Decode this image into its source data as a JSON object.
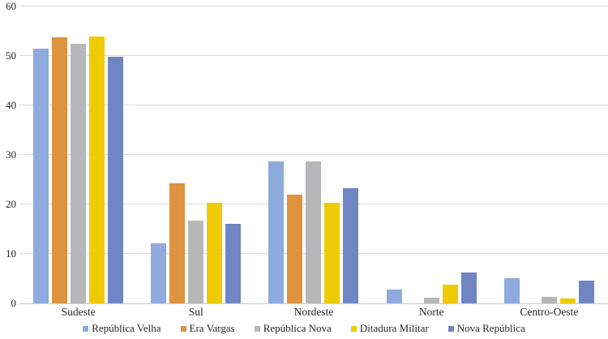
{
  "chart_data": {
    "type": "bar",
    "title": "",
    "xlabel": "",
    "ylabel": "",
    "categories": [
      "Sudeste",
      "Sul",
      "Nordeste",
      "Norte",
      "Centro-Oeste"
    ],
    "series": [
      {
        "name": "República Velha",
        "color": "#8FAADC",
        "values": [
          51.5,
          12.2,
          28.7,
          2.8,
          5.1
        ]
      },
      {
        "name": "Era Vargas",
        "color": "#DD9340",
        "values": [
          53.8,
          24.3,
          21.9,
          0.0,
          0.0
        ]
      },
      {
        "name": "República Nova",
        "color": "#B7B7BA",
        "values": [
          52.4,
          16.7,
          28.7,
          1.2,
          1.3
        ]
      },
      {
        "name": "Ditadura Militar",
        "color": "#EFCB05",
        "values": [
          53.9,
          20.4,
          20.4,
          3.8,
          1.0
        ]
      },
      {
        "name": "Nova República",
        "color": "#7086C2",
        "values": [
          49.9,
          16.0,
          23.2,
          6.3,
          4.6
        ]
      }
    ],
    "ylim": [
      0,
      60
    ],
    "yticks": [
      0,
      10,
      20,
      30,
      40,
      50,
      60
    ],
    "grid": true,
    "legend_position": "bottom",
    "gridline_color": "#DCDCDC",
    "baseline_color": "#CFCDCD",
    "text_color": "#262626",
    "background_color": "#FFFFFF"
  }
}
